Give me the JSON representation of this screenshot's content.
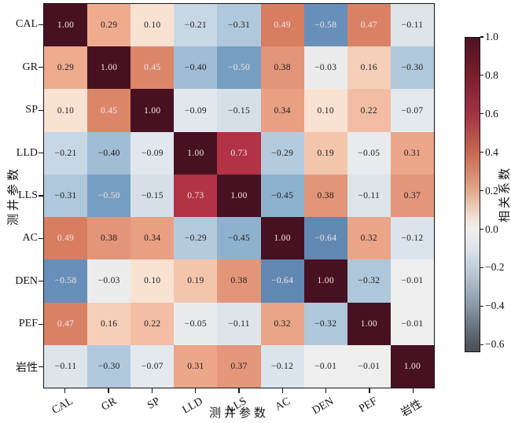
{
  "chart_data": {
    "type": "heatmap",
    "title": "",
    "xlabel": "测井参数",
    "ylabel": "测井参数",
    "categories": [
      "CAL",
      "GR",
      "SP",
      "LLD",
      "LLS",
      "AC",
      "DEN",
      "PEF",
      "岩性"
    ],
    "matrix": [
      [
        1.0,
        0.29,
        0.1,
        -0.21,
        -0.31,
        0.49,
        -0.58,
        0.47,
        -0.11
      ],
      [
        0.29,
        1.0,
        0.45,
        -0.4,
        -0.5,
        0.38,
        -0.03,
        0.16,
        -0.3
      ],
      [
        0.1,
        0.45,
        1.0,
        -0.09,
        -0.15,
        0.34,
        0.1,
        0.22,
        -0.07
      ],
      [
        -0.21,
        -0.4,
        -0.09,
        1.0,
        0.73,
        -0.29,
        0.19,
        -0.05,
        0.31
      ],
      [
        -0.31,
        -0.5,
        -0.15,
        0.73,
        1.0,
        -0.45,
        0.38,
        -0.11,
        0.37
      ],
      [
        0.49,
        0.38,
        0.34,
        -0.29,
        -0.45,
        1.0,
        -0.64,
        0.32,
        -0.12
      ],
      [
        -0.58,
        -0.03,
        0.1,
        0.19,
        0.38,
        -0.64,
        1.0,
        -0.32,
        -0.01
      ],
      [
        0.47,
        0.16,
        0.22,
        -0.05,
        -0.11,
        0.32,
        -0.32,
        1.0,
        -0.01
      ],
      [
        -0.11,
        -0.3,
        -0.07,
        0.31,
        0.37,
        -0.12,
        -0.01,
        -0.01,
        1.0
      ]
    ],
    "colorbar": {
      "label": "相关系数",
      "vmax": 1.0,
      "vmin": -0.64,
      "ticks": [
        1.0,
        0.8,
        0.6,
        0.4,
        0.2,
        0.0,
        -0.2,
        -0.4,
        -0.6
      ],
      "gradient_stops": [
        {
          "v": 1.0,
          "c": "#4a1222"
        },
        {
          "v": 0.8,
          "c": "#7b1f2e"
        },
        {
          "v": 0.6,
          "c": "#a23343"
        },
        {
          "v": 0.4,
          "c": "#c76852"
        },
        {
          "v": 0.2,
          "c": "#e2a88c"
        },
        {
          "v": 0.05,
          "c": "#f2e3da"
        },
        {
          "v": 0.0,
          "c": "#f2efec"
        },
        {
          "v": -0.1,
          "c": "#dfe4e9"
        },
        {
          "v": -0.2,
          "c": "#c2cfda"
        },
        {
          "v": -0.3,
          "c": "#a7b5c2"
        },
        {
          "v": -0.4,
          "c": "#8a98a7"
        },
        {
          "v": -0.5,
          "c": "#6c7684"
        },
        {
          "v": -0.6,
          "c": "#515760"
        },
        {
          "v": -0.64,
          "c": "#4b5058"
        }
      ]
    },
    "cell_colormap_stops": [
      {
        "v": 1.0,
        "c": "#471122"
      },
      {
        "v": 0.73,
        "c": "#b13345"
      },
      {
        "v": 0.55,
        "c": "#cf6c52"
      },
      {
        "v": 0.49,
        "c": "#d87d60"
      },
      {
        "v": 0.38,
        "c": "#e39579"
      },
      {
        "v": 0.29,
        "c": "#eeab8e"
      },
      {
        "v": 0.19,
        "c": "#f4c5ad"
      },
      {
        "v": 0.1,
        "c": "#f9e2d2"
      },
      {
        "v": 0.0,
        "c": "#f1efee"
      },
      {
        "v": -0.1,
        "c": "#dfe6ec"
      },
      {
        "v": -0.21,
        "c": "#c8d7e4"
      },
      {
        "v": -0.3,
        "c": "#b1c9dc"
      },
      {
        "v": -0.4,
        "c": "#a0bdd4"
      },
      {
        "v": -0.45,
        "c": "#8eb1cd"
      },
      {
        "v": -0.52,
        "c": "#6d96bf"
      },
      {
        "v": -0.64,
        "c": "#6188b3"
      }
    ],
    "text_color_rule": {
      "white_if_gte": 0.45,
      "white_if_lte": -0.5,
      "light_text": "#f1e6e2",
      "dark_text": "#1c1c1c"
    },
    "axis_color": "#141414",
    "grid": false,
    "legend_position": "right-colorbar"
  }
}
